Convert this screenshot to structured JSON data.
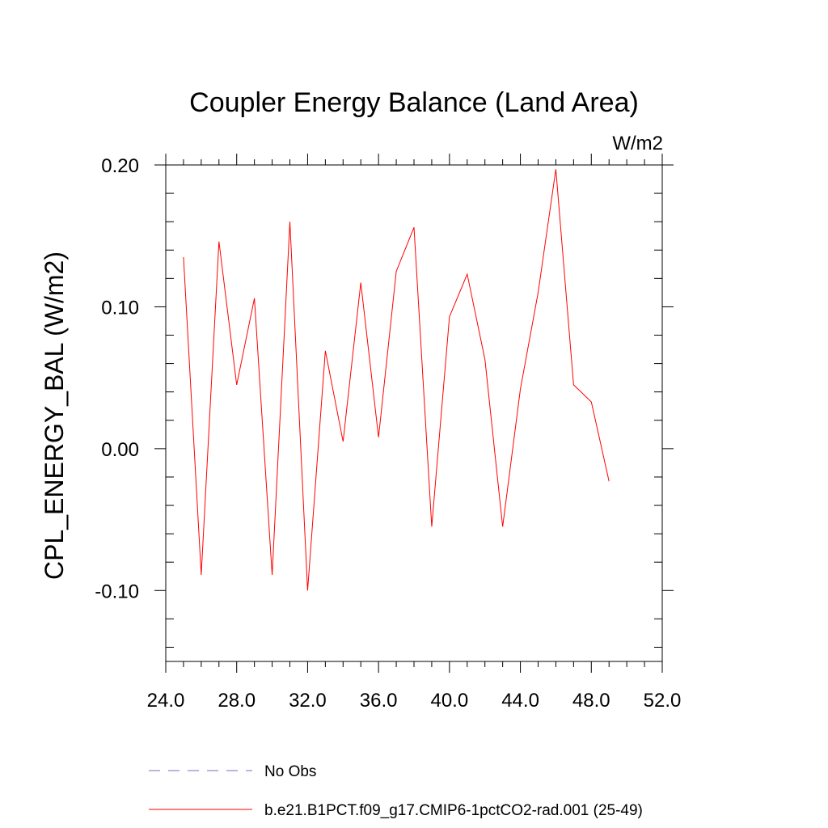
{
  "chart_data": {
    "type": "line",
    "title": "Coupler Energy Balance (Land Area)",
    "units": "W/m2",
    "ylabel": "CPL_ENERGY_BAL  (W/m2)",
    "xlabel": "",
    "xlim": [
      24,
      52
    ],
    "ylim": [
      -0.15,
      0.2
    ],
    "xticks": [
      24,
      28,
      32,
      36,
      40,
      44,
      48,
      52
    ],
    "xtick_labels": [
      "24.0",
      "28.0",
      "32.0",
      "36.0",
      "40.0",
      "44.0",
      "48.0",
      "52.0"
    ],
    "yticks": [
      -0.1,
      0.0,
      0.1,
      0.2
    ],
    "ytick_labels": [
      "-0.10",
      "0.00",
      "0.10",
      "0.20"
    ],
    "series": [
      {
        "name": "b.e21.B1PCT.f09_g17.CMIP6-1pctCO2-rad.001 (25-49)",
        "color": "#ff0000",
        "x": [
          25,
          26,
          27,
          28,
          29,
          30,
          31,
          32,
          33,
          34,
          35,
          36,
          37,
          38,
          39,
          40,
          41,
          42,
          43,
          44,
          45,
          46,
          47,
          48,
          49
        ],
        "y": [
          0.135,
          -0.089,
          0.146,
          0.045,
          0.106,
          -0.089,
          0.16,
          -0.1,
          0.069,
          0.005,
          0.117,
          0.008,
          0.125,
          0.156,
          -0.055,
          0.093,
          0.123,
          0.063,
          -0.055,
          0.042,
          0.11,
          0.197,
          0.045,
          0.033,
          -0.023
        ]
      }
    ],
    "legend": [
      {
        "label": "No Obs",
        "color": "#7b68c8",
        "style": "dashed"
      },
      {
        "label": "b.e21.B1PCT.f09_g17.CMIP6-1pctCO2-rad.001 (25-49)",
        "color": "#ff0000",
        "style": "solid"
      }
    ],
    "legend_position": "bottom"
  }
}
